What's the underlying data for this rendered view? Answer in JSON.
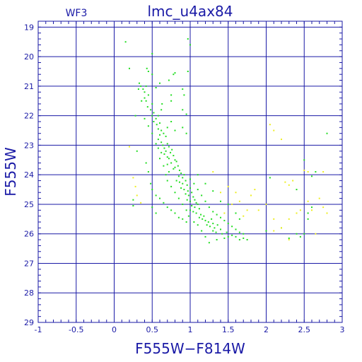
{
  "chart_data": {
    "type": "scatter",
    "title": "lmc_u4ax84",
    "instrument_label": "WF3",
    "xlabel": "F555W−F814W",
    "ylabel": "F555W",
    "xlim": [
      -1,
      3
    ],
    "ylim": [
      29,
      18.8
    ],
    "y_inverted": true,
    "grid": true,
    "x_ticks": [
      -1,
      -0.5,
      0,
      0.5,
      1,
      1.5,
      2,
      2.5,
      3
    ],
    "x_tick_labels": [
      "-1",
      "-0.5",
      "0",
      "0.5",
      "1",
      "1.5",
      "2",
      "2.5",
      "3"
    ],
    "y_ticks": [
      19,
      20,
      21,
      22,
      23,
      24,
      25,
      26,
      27,
      28,
      29
    ],
    "y_tick_labels": [
      "19",
      "20",
      "21",
      "22",
      "23",
      "24",
      "25",
      "26",
      "27",
      "28",
      "29"
    ],
    "colors": {
      "axis": "#1a1aa6",
      "series_main": "#22dd22",
      "series_secondary": "#eeee22"
    },
    "series": [
      {
        "color": "#22dd22",
        "points": [
          [
            0.15,
            19.5
          ],
          [
            0.2,
            20.4
          ],
          [
            0.5,
            19.9
          ],
          [
            0.97,
            19.4
          ],
          [
            1.0,
            19.6
          ],
          [
            0.45,
            20.5
          ],
          [
            0.43,
            20.4
          ],
          [
            0.5,
            20.6
          ],
          [
            0.78,
            20.6
          ],
          [
            0.8,
            20.55
          ],
          [
            0.97,
            20.5
          ],
          [
            0.33,
            20.9
          ],
          [
            0.35,
            21.0
          ],
          [
            0.38,
            21.1
          ],
          [
            0.4,
            21.2
          ],
          [
            0.32,
            21.1
          ],
          [
            0.42,
            21.0
          ],
          [
            0.45,
            21.3
          ],
          [
            0.4,
            21.4
          ],
          [
            0.55,
            21.05
          ],
          [
            0.6,
            20.9
          ],
          [
            0.72,
            20.8
          ],
          [
            0.75,
            21.3
          ],
          [
            0.9,
            21.1
          ],
          [
            0.92,
            21.3
          ],
          [
            0.36,
            21.5
          ],
          [
            0.42,
            21.5
          ],
          [
            0.44,
            21.7
          ],
          [
            0.5,
            21.6
          ],
          [
            0.48,
            21.8
          ],
          [
            0.52,
            21.9
          ],
          [
            0.5,
            22.0
          ],
          [
            0.55,
            22.1
          ],
          [
            0.58,
            22.0
          ],
          [
            0.62,
            21.8
          ],
          [
            0.63,
            21.6
          ],
          [
            0.75,
            21.5
          ],
          [
            0.9,
            21.8
          ],
          [
            0.95,
            21.95
          ],
          [
            0.28,
            22.0
          ],
          [
            0.52,
            22.2
          ],
          [
            0.56,
            22.3
          ],
          [
            0.6,
            22.25
          ],
          [
            0.58,
            22.45
          ],
          [
            0.62,
            22.5
          ],
          [
            0.6,
            22.65
          ],
          [
            0.65,
            22.6
          ],
          [
            0.7,
            22.4
          ],
          [
            0.68,
            22.7
          ],
          [
            0.75,
            22.2
          ],
          [
            0.8,
            22.5
          ],
          [
            0.9,
            22.4
          ],
          [
            0.95,
            22.6
          ],
          [
            0.58,
            22.8
          ],
          [
            0.62,
            22.9
          ],
          [
            0.64,
            23.0
          ],
          [
            0.66,
            23.1
          ],
          [
            0.7,
            22.95
          ],
          [
            0.72,
            23.05
          ],
          [
            0.68,
            23.2
          ],
          [
            0.74,
            23.25
          ],
          [
            0.76,
            23.15
          ],
          [
            0.7,
            23.4
          ],
          [
            0.72,
            23.45
          ],
          [
            0.78,
            23.35
          ],
          [
            0.8,
            23.5
          ],
          [
            0.75,
            23.6
          ],
          [
            0.82,
            23.55
          ],
          [
            0.84,
            23.7
          ],
          [
            0.78,
            23.8
          ],
          [
            0.8,
            23.75
          ],
          [
            0.86,
            23.85
          ],
          [
            0.88,
            23.95
          ],
          [
            0.85,
            24.05
          ],
          [
            0.9,
            24.1
          ],
          [
            0.92,
            24.0
          ],
          [
            0.82,
            24.2
          ],
          [
            0.86,
            24.25
          ],
          [
            0.9,
            24.3
          ],
          [
            0.94,
            24.2
          ],
          [
            0.96,
            24.35
          ],
          [
            0.88,
            24.45
          ],
          [
            0.92,
            24.5
          ],
          [
            0.97,
            24.55
          ],
          [
            1.0,
            24.45
          ],
          [
            0.94,
            24.65
          ],
          [
            0.98,
            24.7
          ],
          [
            1.02,
            24.6
          ],
          [
            1.04,
            24.75
          ],
          [
            0.96,
            24.85
          ],
          [
            1.0,
            24.9
          ],
          [
            1.06,
            24.85
          ],
          [
            1.08,
            24.95
          ],
          [
            1.02,
            25.05
          ],
          [
            1.06,
            25.1
          ],
          [
            1.1,
            25.0
          ],
          [
            1.12,
            25.15
          ],
          [
            1.0,
            25.2
          ],
          [
            1.04,
            25.25
          ],
          [
            1.08,
            25.3
          ],
          [
            1.14,
            25.35
          ],
          [
            1.18,
            25.4
          ],
          [
            1.12,
            25.45
          ],
          [
            1.16,
            25.5
          ],
          [
            1.2,
            25.55
          ],
          [
            1.24,
            25.6
          ],
          [
            1.28,
            25.5
          ],
          [
            1.3,
            25.65
          ],
          [
            1.22,
            25.7
          ],
          [
            1.26,
            25.75
          ],
          [
            1.32,
            25.8
          ],
          [
            1.36,
            25.7
          ],
          [
            1.4,
            25.85
          ],
          [
            1.3,
            25.9
          ],
          [
            1.34,
            25.95
          ],
          [
            1.42,
            26.0
          ],
          [
            1.48,
            25.95
          ],
          [
            1.5,
            26.1
          ],
          [
            1.45,
            26.15
          ],
          [
            1.55,
            26.05
          ],
          [
            1.6,
            26.1
          ],
          [
            1.65,
            26.2
          ],
          [
            1.7,
            26.15
          ],
          [
            1.75,
            26.2
          ],
          [
            1.25,
            26.3
          ],
          [
            1.35,
            26.2
          ],
          [
            1.2,
            26.1
          ],
          [
            1.15,
            25.9
          ],
          [
            1.1,
            25.7
          ],
          [
            1.05,
            25.6
          ],
          [
            0.98,
            25.4
          ],
          [
            0.95,
            25.2
          ],
          [
            0.9,
            25.0
          ],
          [
            0.85,
            24.8
          ],
          [
            0.8,
            24.6
          ],
          [
            0.75,
            24.4
          ],
          [
            0.7,
            24.2
          ],
          [
            0.68,
            24.0
          ],
          [
            0.72,
            23.9
          ],
          [
            0.65,
            23.7
          ],
          [
            0.7,
            23.65
          ],
          [
            0.6,
            23.45
          ],
          [
            0.66,
            23.3
          ],
          [
            0.62,
            23.25
          ],
          [
            0.55,
            22.95
          ],
          [
            0.58,
            23.1
          ],
          [
            0.5,
            22.6
          ],
          [
            0.45,
            22.35
          ],
          [
            0.4,
            22.1
          ],
          [
            0.3,
            23.2
          ],
          [
            0.42,
            23.6
          ],
          [
            0.45,
            23.9
          ],
          [
            0.48,
            24.3
          ],
          [
            0.5,
            24.5
          ],
          [
            0.55,
            24.7
          ],
          [
            0.6,
            24.8
          ],
          [
            0.65,
            24.95
          ],
          [
            0.7,
            25.1
          ],
          [
            0.75,
            25.2
          ],
          [
            0.8,
            25.3
          ],
          [
            0.85,
            25.45
          ],
          [
            0.9,
            25.5
          ],
          [
            0.95,
            25.6
          ],
          [
            0.55,
            25.3
          ],
          [
            0.5,
            25.1
          ],
          [
            0.25,
            24.85
          ],
          [
            0.25,
            25.05
          ],
          [
            1.0,
            24.15
          ],
          [
            1.05,
            24.3
          ],
          [
            1.1,
            24.5
          ],
          [
            1.15,
            24.7
          ],
          [
            1.2,
            24.9
          ],
          [
            1.25,
            25.1
          ],
          [
            1.3,
            25.25
          ],
          [
            1.35,
            25.35
          ],
          [
            1.4,
            25.45
          ],
          [
            1.45,
            25.55
          ],
          [
            1.5,
            25.65
          ],
          [
            1.55,
            25.75
          ],
          [
            1.6,
            25.85
          ],
          [
            1.65,
            25.95
          ],
          [
            1.7,
            26.0
          ],
          [
            1.1,
            24.0
          ],
          [
            1.2,
            24.3
          ],
          [
            1.3,
            24.55
          ],
          [
            1.4,
            24.9
          ],
          [
            1.5,
            25.0
          ],
          [
            1.6,
            25.3
          ],
          [
            1.65,
            25.5
          ],
          [
            2.05,
            24.1
          ],
          [
            2.0,
            25.9
          ],
          [
            2.4,
            24.5
          ],
          [
            2.45,
            26.1
          ],
          [
            2.5,
            26.0
          ],
          [
            2.55,
            25.5
          ],
          [
            2.6,
            25.1
          ],
          [
            2.65,
            23.9
          ],
          [
            2.8,
            22.6
          ],
          [
            2.5,
            23.5
          ],
          [
            2.6,
            24.05
          ],
          [
            2.55,
            25.3
          ],
          [
            2.4,
            26.0
          ],
          [
            2.2,
            25.8
          ],
          [
            2.3,
            26.15
          ]
        ]
      },
      {
        "color": "#eeee22",
        "points": [
          [
            0.2,
            23.05
          ],
          [
            0.25,
            24.1
          ],
          [
            0.28,
            24.4
          ],
          [
            0.3,
            24.7
          ],
          [
            0.35,
            24.95
          ],
          [
            2.05,
            22.3
          ],
          [
            2.1,
            22.5
          ],
          [
            2.2,
            22.8
          ],
          [
            2.25,
            24.25
          ],
          [
            2.3,
            24.35
          ],
          [
            2.35,
            24.2
          ],
          [
            2.5,
            23.85
          ],
          [
            2.55,
            23.9
          ],
          [
            2.75,
            23.9
          ],
          [
            1.4,
            24.6
          ],
          [
            1.5,
            24.4
          ],
          [
            1.6,
            24.6
          ],
          [
            1.65,
            24.9
          ],
          [
            1.8,
            24.7
          ],
          [
            1.85,
            24.5
          ],
          [
            1.9,
            25.2
          ],
          [
            1.75,
            25.2
          ],
          [
            1.55,
            25.0
          ],
          [
            1.45,
            25.3
          ],
          [
            2.0,
            25.0
          ],
          [
            2.1,
            25.5
          ],
          [
            2.2,
            25.8
          ],
          [
            2.3,
            25.5
          ],
          [
            2.4,
            25.3
          ],
          [
            2.45,
            25.2
          ],
          [
            2.6,
            25.2
          ],
          [
            2.7,
            24.8
          ],
          [
            2.75,
            25.1
          ],
          [
            2.55,
            24.9
          ],
          [
            2.3,
            26.2
          ],
          [
            2.1,
            25.9
          ],
          [
            1.3,
            23.9
          ],
          [
            1.7,
            25.4
          ],
          [
            2.8,
            25.3
          ],
          [
            2.65,
            26.0
          ]
        ]
      }
    ]
  }
}
